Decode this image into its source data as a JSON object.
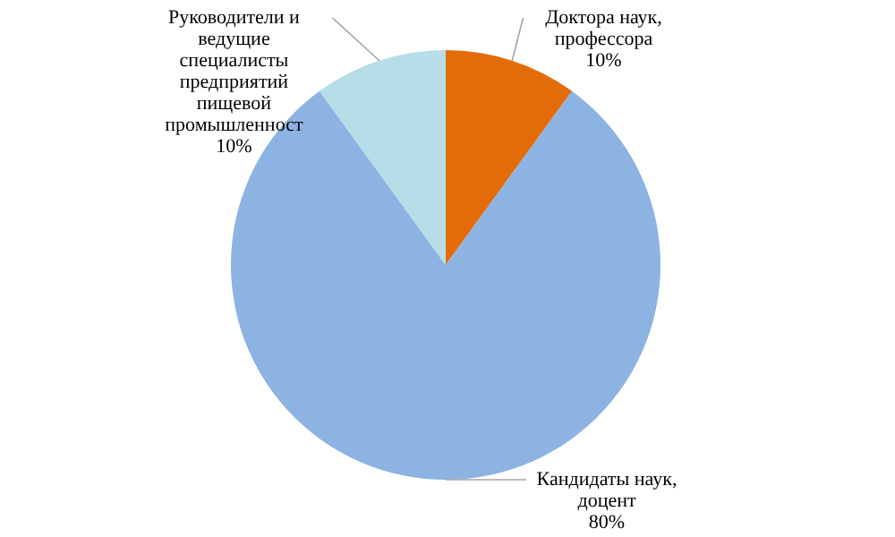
{
  "chart_data": {
    "type": "pie",
    "categories": [
      "Доктора наук,\nпрофессора",
      "Кандидаты наук,\nдоцент",
      "Руководители и\nведущие\nспециалисты\nпредприятий\nпищевой\nпромышленност"
    ],
    "values": [
      10,
      80,
      10
    ],
    "value_labels": [
      "10%",
      "80%",
      "10%"
    ],
    "colors": [
      "#e36c0a",
      "#8db3e2",
      "#b7dde8"
    ]
  }
}
